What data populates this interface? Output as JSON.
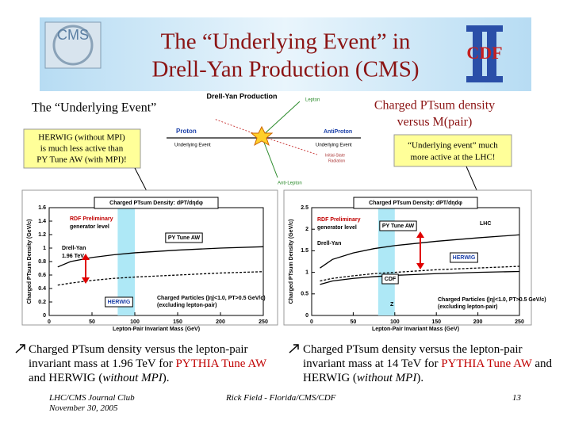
{
  "slide": {
    "title_line1": "The “Underlying Event” in",
    "title_line2": "Drell-Yan Production (CMS)",
    "logo_left": "CMS",
    "logo_right": "CDF",
    "left_heading": "The “Underlying Event”",
    "right_heading": [
      "Charged PTsum density",
      "versus M(pair)"
    ],
    "left_callout": [
      "HERWIG (without MPI)",
      "is much less active than",
      "PY Tune AW (with MPI)!"
    ],
    "right_callout": [
      "“Underlying event” much",
      "more active at the LHC!"
    ],
    "diagram": {
      "title": "Drell-Yan Production",
      "lepton": "Lepton",
      "proton": "Proton",
      "antiproton": "AntiProton",
      "ue_left": "Underlying Event",
      "ue_right": "Underlying Event",
      "isr": [
        "Initial-State",
        "Radiation"
      ],
      "antilepton": "Anti-Lepton"
    },
    "bullets": [
      [
        "Charged PTsum density versus the lepton-pair invariant mass at 1.96 TeV for ",
        "PYTHIA Tune AW",
        " and HERWIG (",
        "without MPI",
        ")."
      ],
      [
        "Charged PTsum density versus the lepton-pair invariant mass at 14 TeV for ",
        "PYTHIA Tune AW",
        " and HERWIG (",
        "without MPI",
        ")."
      ]
    ],
    "footer": {
      "left": [
        "LHC/CMS Journal Club",
        "November 30, 2005"
      ],
      "center": "Rick Field - Florida/CMS/CDF",
      "page": "13"
    }
  },
  "chart_data": [
    {
      "type": "line",
      "title": "Charged PTsum Density: dPT/dηdφ",
      "annotations": [
        "RDF Preliminary",
        "generator level",
        "Drell-Yan",
        "1.96 TeV",
        "Charged Particles (|η|<1.0, PT>0.5 GeV/c)",
        "(excluding lepton-pair)"
      ],
      "xlabel": "Lepton-Pair Invariant Mass (GeV)",
      "ylabel": "Charged PTsum Density (GeV/c)",
      "x": [
        10,
        25,
        50,
        75,
        100,
        150,
        200,
        250
      ],
      "series": [
        {
          "name": "PY Tune AW",
          "color": "#000000",
          "dashed": false,
          "values": [
            0.72,
            0.8,
            0.86,
            0.9,
            0.93,
            0.97,
            1.0,
            1.02
          ]
        },
        {
          "name": "HERWIG",
          "color": "#000000",
          "dashed": true,
          "values": [
            0.45,
            0.48,
            0.52,
            0.55,
            0.57,
            0.6,
            0.63,
            0.65
          ]
        }
      ],
      "shaded_range": [
        80,
        100
      ],
      "xlim": [
        0,
        250
      ],
      "xticks": [
        0,
        50,
        100,
        150,
        200,
        250
      ],
      "ylim": [
        0,
        1.6
      ],
      "yticks": [
        0,
        0.2,
        0.4,
        0.6,
        0.8,
        1,
        1.2,
        1.4,
        1.6
      ]
    },
    {
      "type": "line",
      "title": "Charged PTsum Density: dPT/dηdφ",
      "annotations": [
        "RDF Preliminary",
        "generator level",
        "Drell-Yan",
        "LHC",
        "Z",
        "Charged Particles (|η|<1.0, PT>0.5 GeV/c)",
        "(excluding lepton-pair)"
      ],
      "xlabel": "Lepton-Pair Invariant Mass (GeV)",
      "ylabel": "Charged PTsum Density (GeV/c)",
      "x": [
        10,
        25,
        50,
        75,
        100,
        150,
        200,
        250
      ],
      "series": [
        {
          "name": "PY Tune AW",
          "color": "#000000",
          "dashed": false,
          "values": [
            1.1,
            1.3,
            1.45,
            1.55,
            1.62,
            1.72,
            1.8,
            1.87
          ]
        },
        {
          "name": "HERWIG",
          "color": "#000000",
          "dashed": true,
          "values": [
            0.8,
            0.86,
            0.92,
            0.97,
            1.0,
            1.06,
            1.1,
            1.14
          ]
        },
        {
          "name": "CDF",
          "color": "#000000",
          "dashed": false,
          "values": [
            0.72,
            0.8,
            0.86,
            0.9,
            0.93,
            0.97,
            1.0,
            1.02
          ]
        }
      ],
      "shaded_range": [
        80,
        100
      ],
      "xlim": [
        0,
        250
      ],
      "xticks": [
        0,
        50,
        100,
        150,
        200,
        250
      ],
      "ylim": [
        0,
        2.5
      ],
      "yticks": [
        0,
        0.5,
        1,
        1.5,
        2,
        2.5
      ]
    }
  ]
}
